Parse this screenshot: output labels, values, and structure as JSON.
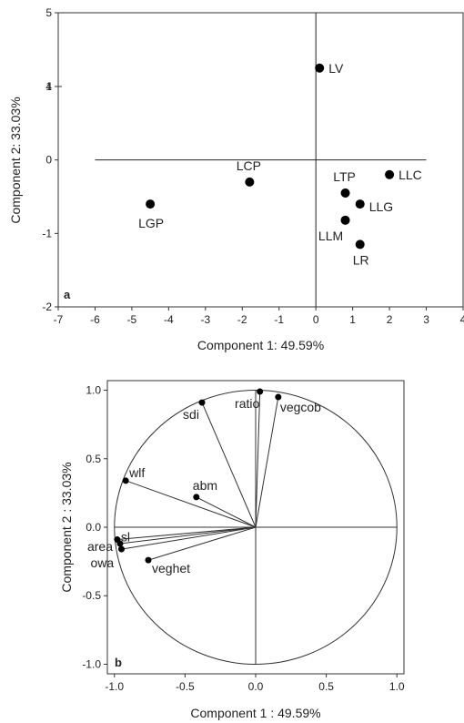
{
  "chart_data": [
    {
      "type": "scatter",
      "panel_label": "a",
      "xlabel": "Component 1: 49.59%",
      "ylabel": "Component 2: 33.03%",
      "xlim": [
        -7,
        4
      ],
      "ylim_lower": [
        -2,
        1
      ],
      "ylim_upper": [
        4,
        5
      ],
      "x_ticks": [
        "-7",
        "-6",
        "-5",
        "-4",
        "-3",
        "-2",
        "-1",
        "0",
        "1",
        "2",
        "3",
        "4"
      ],
      "y_ticks_lower": [
        "-2",
        "-1",
        "0",
        "1"
      ],
      "y_ticks_upper": [
        "4",
        "5"
      ],
      "points": [
        {
          "label": "LV",
          "x": 0.1,
          "y": 4.25
        },
        {
          "label": "LLC",
          "x": 2.0,
          "y": -0.2
        },
        {
          "label": "LTP",
          "x": 0.8,
          "y": -0.45
        },
        {
          "label": "LLG",
          "x": 1.2,
          "y": -0.6
        },
        {
          "label": "LLM",
          "x": 0.8,
          "y": -0.82
        },
        {
          "label": "LR",
          "x": 1.2,
          "y": -1.15
        },
        {
          "label": "LCP",
          "x": -1.8,
          "y": -0.3
        },
        {
          "label": "LGP",
          "x": -4.5,
          "y": -0.6
        }
      ]
    },
    {
      "type": "scatter",
      "panel_label": "b",
      "xlabel": "Component 1 : 49.59%",
      "ylabel": "Component 2 : 33.03%",
      "xlim": [
        -1.05,
        1.05
      ],
      "ylim": [
        -1.07,
        1.07
      ],
      "x_ticks": [
        "-1.0",
        "-0.5",
        "0.0",
        "0.5",
        "1.0"
      ],
      "y_ticks": [
        "-1.0",
        "-0.5",
        "0.0",
        "0.5",
        "1.0"
      ],
      "vectors": [
        {
          "label": "ratio",
          "x": 0.03,
          "y": 0.99
        },
        {
          "label": "vegcob",
          "x": 0.16,
          "y": 0.95
        },
        {
          "label": "sdi",
          "x": -0.38,
          "y": 0.91
        },
        {
          "label": "wlf",
          "x": -0.92,
          "y": 0.34
        },
        {
          "label": "abm",
          "x": -0.42,
          "y": 0.22
        },
        {
          "label": "sl",
          "x": -0.98,
          "y": -0.09
        },
        {
          "label": "area",
          "x": -0.96,
          "y": -0.12
        },
        {
          "label": "owa",
          "x": -0.95,
          "y": -0.16
        },
        {
          "label": "veghet",
          "x": -0.76,
          "y": -0.24
        }
      ]
    }
  ]
}
